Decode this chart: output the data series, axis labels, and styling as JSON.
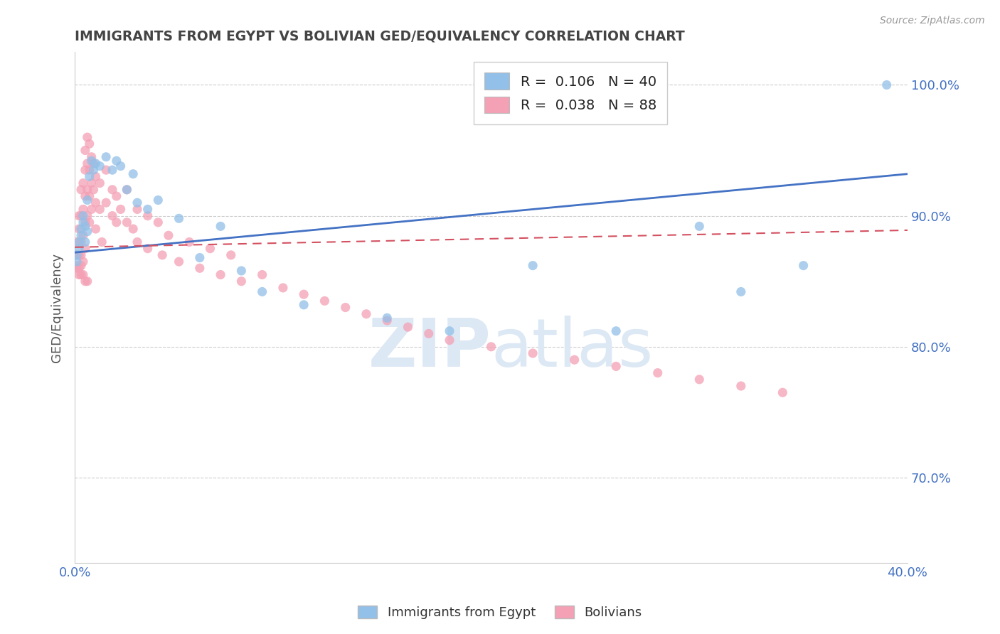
{
  "title": "IMMIGRANTS FROM EGYPT VS BOLIVIAN GED/EQUIVALENCY CORRELATION CHART",
  "source": "Source: ZipAtlas.com",
  "ylabel": "GED/Equivalency",
  "legend_label_1": "Immigrants from Egypt",
  "legend_label_2": "Bolivians",
  "R1": 0.106,
  "N1": 40,
  "R2": 0.038,
  "N2": 88,
  "color1": "#92c0e8",
  "color2": "#f4a0b5",
  "trendline1_color": "#4472c4",
  "trendline2_color": "#d45060",
  "xlim": [
    0.0,
    0.4
  ],
  "ylim": [
    0.635,
    1.025
  ],
  "xticks": [
    0.0,
    0.1,
    0.2,
    0.3,
    0.4
  ],
  "xtick_labels": [
    "0.0%",
    "",
    "",
    "",
    "40.0%"
  ],
  "yticks": [
    0.7,
    0.8,
    0.9,
    1.0
  ],
  "ytick_labels_left": [
    "70.0%",
    "80.0%",
    "90.0%",
    "100.0%"
  ],
  "ytick_labels_right": [
    "70.0%",
    "80.0%",
    "90.0%",
    "100.0%"
  ],
  "scatter1_x": [
    0.001,
    0.002,
    0.002,
    0.003,
    0.003,
    0.004,
    0.004,
    0.005,
    0.005,
    0.006,
    0.006,
    0.007,
    0.008,
    0.009,
    0.01,
    0.012,
    0.015,
    0.018,
    0.02,
    0.022,
    0.025,
    0.028,
    0.03,
    0.035,
    0.04,
    0.05,
    0.06,
    0.07,
    0.08,
    0.09,
    0.11,
    0.15,
    0.18,
    0.22,
    0.26,
    0.3,
    0.32,
    0.35,
    0.39,
    0.001
  ],
  "scatter1_y": [
    0.87,
    0.875,
    0.88,
    0.885,
    0.89,
    0.895,
    0.9,
    0.88,
    0.892,
    0.888,
    0.912,
    0.93,
    0.942,
    0.935,
    0.94,
    0.938,
    0.945,
    0.935,
    0.942,
    0.938,
    0.92,
    0.932,
    0.91,
    0.905,
    0.912,
    0.898,
    0.868,
    0.892,
    0.858,
    0.842,
    0.832,
    0.822,
    0.812,
    0.862,
    0.812,
    0.892,
    0.842,
    0.862,
    1.0,
    0.865
  ],
  "scatter2_x": [
    0.001,
    0.001,
    0.001,
    0.002,
    0.002,
    0.002,
    0.002,
    0.003,
    0.003,
    0.003,
    0.003,
    0.003,
    0.004,
    0.004,
    0.004,
    0.004,
    0.005,
    0.005,
    0.005,
    0.005,
    0.005,
    0.006,
    0.006,
    0.006,
    0.006,
    0.007,
    0.007,
    0.007,
    0.007,
    0.008,
    0.008,
    0.008,
    0.009,
    0.009,
    0.01,
    0.01,
    0.01,
    0.012,
    0.012,
    0.013,
    0.015,
    0.015,
    0.018,
    0.018,
    0.02,
    0.02,
    0.022,
    0.025,
    0.025,
    0.028,
    0.03,
    0.03,
    0.035,
    0.035,
    0.04,
    0.042,
    0.045,
    0.05,
    0.055,
    0.06,
    0.065,
    0.07,
    0.075,
    0.08,
    0.09,
    0.1,
    0.11,
    0.12,
    0.13,
    0.14,
    0.15,
    0.16,
    0.17,
    0.18,
    0.2,
    0.22,
    0.24,
    0.26,
    0.28,
    0.3,
    0.32,
    0.34,
    0.001,
    0.002,
    0.003,
    0.004,
    0.005,
    0.006
  ],
  "scatter2_y": [
    0.87,
    0.88,
    0.862,
    0.89,
    0.9,
    0.87,
    0.855,
    0.92,
    0.9,
    0.88,
    0.862,
    0.87,
    0.925,
    0.905,
    0.885,
    0.865,
    0.95,
    0.935,
    0.915,
    0.895,
    0.875,
    0.96,
    0.94,
    0.92,
    0.9,
    0.955,
    0.935,
    0.915,
    0.895,
    0.945,
    0.925,
    0.905,
    0.94,
    0.92,
    0.93,
    0.91,
    0.89,
    0.925,
    0.905,
    0.88,
    0.935,
    0.91,
    0.92,
    0.9,
    0.915,
    0.895,
    0.905,
    0.92,
    0.895,
    0.89,
    0.905,
    0.88,
    0.9,
    0.875,
    0.895,
    0.87,
    0.885,
    0.865,
    0.88,
    0.86,
    0.875,
    0.855,
    0.87,
    0.85,
    0.855,
    0.845,
    0.84,
    0.835,
    0.83,
    0.825,
    0.82,
    0.815,
    0.81,
    0.805,
    0.8,
    0.795,
    0.79,
    0.785,
    0.78,
    0.775,
    0.77,
    0.765,
    0.86,
    0.86,
    0.855,
    0.855,
    0.85,
    0.85
  ],
  "trendline1_x0": 0.0,
  "trendline1_y0": 0.872,
  "trendline1_x1": 0.4,
  "trendline1_y1": 0.932,
  "trendline2_x0": 0.0,
  "trendline2_y0": 0.876,
  "trendline2_x1": 0.4,
  "trendline2_y1": 0.889,
  "watermark_zip": "ZIP",
  "watermark_atlas": "atlas",
  "bg_color": "#ffffff",
  "grid_color": "#cccccc",
  "title_color": "#444444",
  "axis_tick_color": "#4472c4",
  "marker_size": 90
}
